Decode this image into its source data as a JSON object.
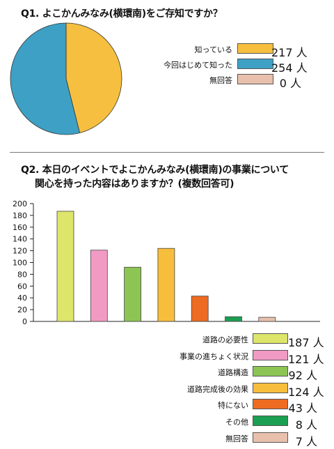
{
  "q1": {
    "title": "Q1. よこかんみなみ(横環南)をご存知ですか？",
    "unit": "人"
  },
  "q2": {
    "title_line1": "Q2. 本日のイベントでよこかんみなみ(横環南)の事業について",
    "title_line2": "関心を持った内容はありますか？(複数回答可)",
    "unit": "人"
  },
  "chart_data": [
    {
      "type": "pie",
      "title": "Q1. よこかんみなみ(横環南)をご存知ですか？",
      "categories": [
        "知っている",
        "今回はじめて知った",
        "無回答"
      ],
      "values": [
        217,
        254,
        0
      ],
      "colors": [
        "#f6bf3f",
        "#3ea0c5",
        "#e8c0ac"
      ],
      "legend_position": "right",
      "unit": "人"
    },
    {
      "type": "bar",
      "title": "Q2. 本日のイベントでよこかんみなみ(横環南)の事業について関心を持った内容はありますか？(複数回答可)",
      "categories": [
        "道路の必要性",
        "事業の進ちょく状況",
        "道路構造",
        "道路完成後の効果",
        "特にない",
        "その他",
        "無回答"
      ],
      "values": [
        187,
        121,
        92,
        124,
        43,
        8,
        7
      ],
      "colors": [
        "#dde56a",
        "#f19ac4",
        "#8cc554",
        "#f7bd3d",
        "#ee6b22",
        "#1aa050",
        "#e8c0ac"
      ],
      "ylim": [
        0,
        200
      ],
      "yticks": [
        0,
        20,
        40,
        60,
        80,
        100,
        120,
        140,
        160,
        180,
        200
      ],
      "grid": false,
      "legend_position": "bottom-right",
      "unit": "人"
    }
  ]
}
